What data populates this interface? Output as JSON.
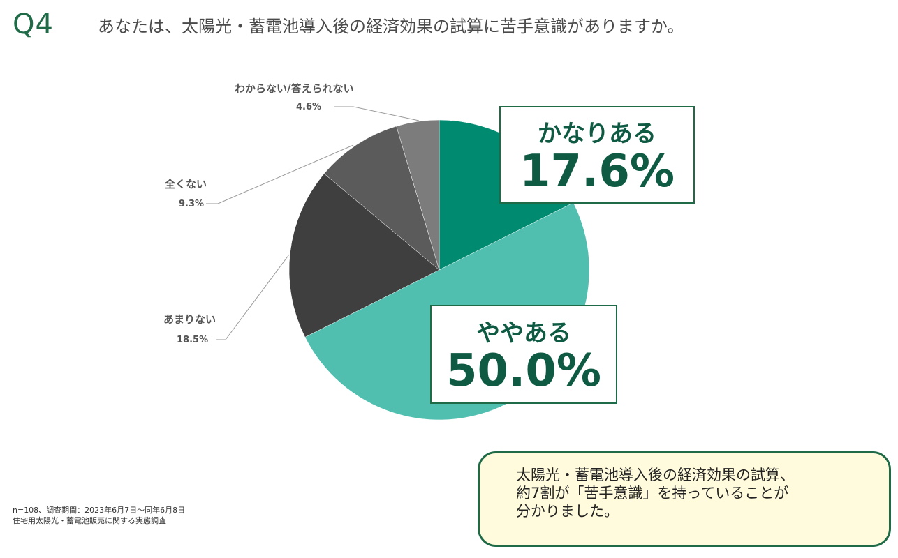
{
  "header": {
    "question_number": "Q4",
    "question_text": "あなたは、太陽光・蓄電池導入後の経済効果の試算に苦手意識がありますか。"
  },
  "chart_data": {
    "type": "pie",
    "title": "",
    "start_angle_deg": 0,
    "direction": "clockwise",
    "slices": [
      {
        "label": "かなりある",
        "value": 17.6,
        "display": "17.6%",
        "color": "#008a70"
      },
      {
        "label": "ややある",
        "value": 50.0,
        "display": "50.0%",
        "color": "#51bfb0"
      },
      {
        "label": "あまりない",
        "value": 18.5,
        "display": "18.5%",
        "color": "#3f3f3f"
      },
      {
        "label": "全くない",
        "value": 9.3,
        "display": "9.3%",
        "color": "#5b5b5b"
      },
      {
        "label": "わからない/答えられない",
        "value": 4.6,
        "display": "4.6%",
        "color": "#7c7c7c"
      }
    ]
  },
  "footnote": {
    "line1": "n=108、調査期間：2023年6月7日～同年6月8日",
    "line2": "住宅用太陽光・蓄電池販売に関する実態調査"
  },
  "summary": {
    "line1": "太陽光・蓄電池導入後の経済効果の試算、",
    "line2": "約7割が「苦手意識」を持っていることが",
    "line3": "分かりました。"
  }
}
